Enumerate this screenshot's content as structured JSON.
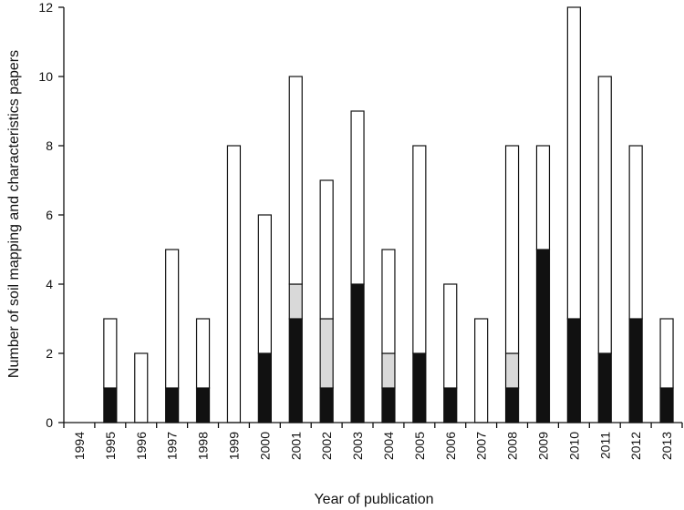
{
  "chart_data": {
    "type": "bar",
    "stacked": true,
    "title": "",
    "xlabel": "Year of publication",
    "ylabel": "Number of soil mapping and characteristics papers",
    "ylim": [
      0,
      12
    ],
    "yticks": [
      0,
      2,
      4,
      6,
      8,
      10,
      12
    ],
    "categories": [
      "1994",
      "1995",
      "1996",
      "1997",
      "1998",
      "1999",
      "2000",
      "2001",
      "2002",
      "2003",
      "2004",
      "2005",
      "2006",
      "2007",
      "2008",
      "2009",
      "2010",
      "2011",
      "2012",
      "2013"
    ],
    "series": [
      {
        "color": "#111111",
        "values": [
          0,
          1,
          0,
          1,
          1,
          0,
          2,
          3,
          1,
          4,
          1,
          2,
          1,
          0,
          1,
          5,
          3,
          2,
          3,
          1
        ]
      },
      {
        "color": "#d9d9d9",
        "values": [
          0,
          0,
          0,
          0,
          0,
          0,
          0,
          1,
          2,
          0,
          1,
          0,
          0,
          0,
          1,
          0,
          0,
          0,
          0,
          0
        ]
      },
      {
        "color": "#ffffff",
        "values": [
          0,
          2,
          2,
          4,
          2,
          8,
          4,
          6,
          4,
          5,
          3,
          6,
          3,
          3,
          6,
          3,
          9,
          8,
          5,
          2
        ]
      }
    ],
    "grid": false,
    "legend": "none"
  }
}
